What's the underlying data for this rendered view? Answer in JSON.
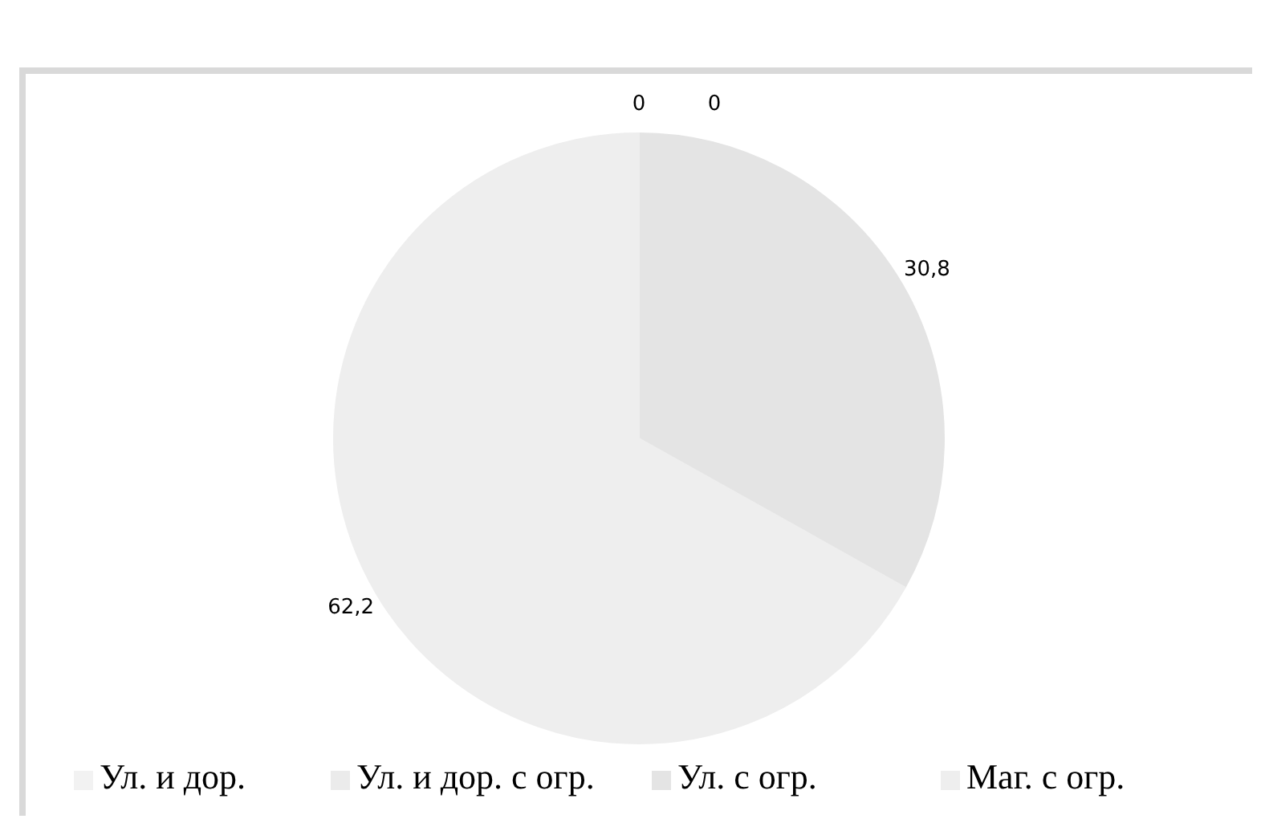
{
  "chart_data": {
    "type": "pie",
    "categories": [
      "Ул. и дор.",
      "Ул. и дор. с огр.",
      "Ул. с огр.",
      "Маг. с огр."
    ],
    "values": [
      0,
      0,
      30.8,
      62.2
    ],
    "value_labels": [
      "0",
      "0",
      "30,8",
      "62,2"
    ],
    "colors": [
      "#f2f2f2",
      "#ebebeb",
      "#e4e4e4",
      "#eeeeee"
    ],
    "legend": "bottom"
  }
}
